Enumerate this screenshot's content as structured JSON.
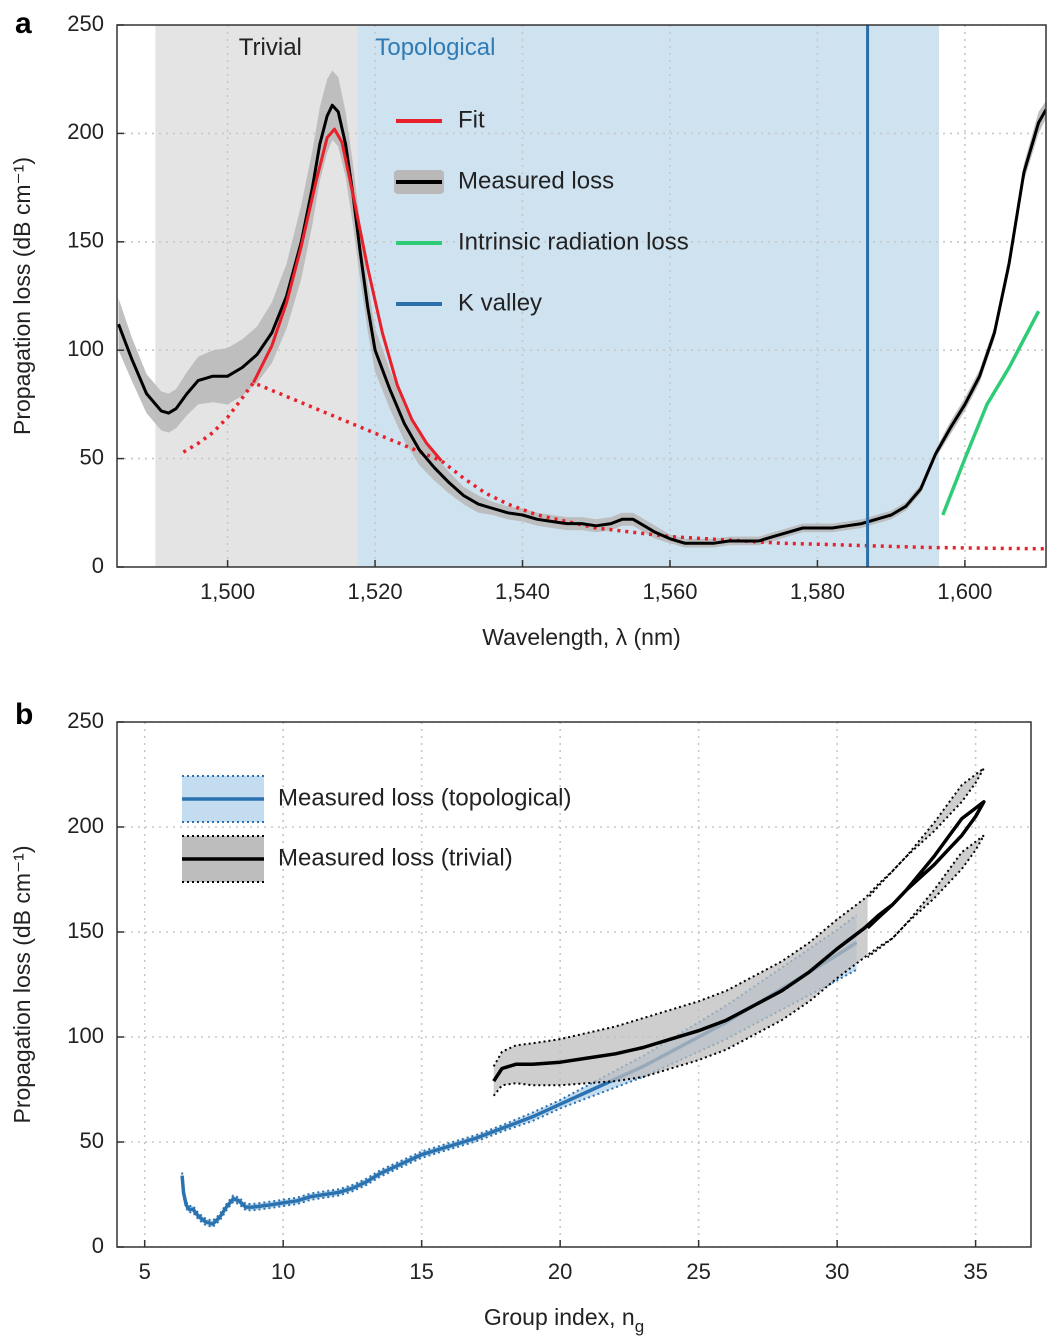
{
  "chart_data": [
    {
      "panel": "a",
      "type": "line",
      "xlabel": "Wavelength, λ (nm)",
      "ylabel": "Propagation loss (dB cm⁻¹)",
      "xlim": [
        1485,
        1611
      ],
      "ylim": [
        0,
        250
      ],
      "xticks": [
        1500,
        1520,
        1540,
        1560,
        1580,
        1600
      ],
      "xtick_labels": [
        "1,500",
        "1,520",
        "1,540",
        "1,560",
        "1,580",
        "1,600"
      ],
      "yticks": [
        0,
        50,
        100,
        150,
        200,
        250
      ],
      "ytick_labels": [
        "0",
        "50",
        "100",
        "150",
        "200",
        "250"
      ],
      "grid": true,
      "regions": [
        {
          "label": "Trivial",
          "x_range": [
            1490.2,
            1517.6
          ],
          "color": "#e4e4e4",
          "text_color": "#222222"
        },
        {
          "label": "Topological",
          "x_range": [
            1517.6,
            1596.5
          ],
          "color": "#cfe2f0",
          "text_color": "#2f7bb5"
        }
      ],
      "vline": {
        "x": 1586.8,
        "color": "#2a6fa8"
      },
      "legend": {
        "placement": "upper-center",
        "entries": [
          {
            "label": "Fit",
            "color": "#e8202a"
          },
          {
            "label": "Measured loss",
            "color": "#000000"
          },
          {
            "label": "Intrinsic radiation loss",
            "color": "#2fcc78"
          },
          {
            "label": "K valley",
            "color": "#2a6fa8"
          }
        ]
      },
      "series": [
        {
          "name": "Measured loss",
          "color": "#000000",
          "band_color": "#b9b9b9",
          "x": [
            1485.2,
            1487,
            1489,
            1491,
            1492,
            1493,
            1494.5,
            1496,
            1498,
            1500,
            1502,
            1504,
            1506,
            1508,
            1510,
            1511.5,
            1512.5,
            1513.5,
            1514.2,
            1515,
            1516,
            1517,
            1518,
            1519,
            1520,
            1522,
            1524,
            1526,
            1528,
            1530,
            1532,
            1534,
            1536,
            1538,
            1540,
            1542,
            1544,
            1546,
            1548,
            1550,
            1552,
            1553.5,
            1555,
            1556.5,
            1558,
            1560,
            1562,
            1564,
            1566,
            1568,
            1570,
            1572,
            1574,
            1576,
            1578,
            1580,
            1582,
            1584,
            1586,
            1588,
            1590,
            1592,
            1594,
            1596,
            1598,
            1600,
            1602,
            1604,
            1606,
            1608,
            1610,
            1611
          ],
          "y": [
            112,
            96,
            80,
            72,
            71,
            73,
            80,
            86,
            88,
            88,
            92,
            98,
            108,
            125,
            150,
            175,
            195,
            208,
            213,
            210,
            195,
            172,
            145,
            120,
            100,
            82,
            66,
            54,
            46,
            39,
            33,
            29,
            27,
            25,
            24,
            22,
            21,
            20,
            20,
            19,
            20,
            22,
            22,
            19,
            16,
            13,
            11,
            11,
            11,
            12,
            12,
            12,
            14,
            16,
            18,
            18,
            18,
            19,
            20,
            22,
            24,
            28,
            36,
            52,
            64,
            75,
            88,
            108,
            140,
            182,
            205,
            211
          ],
          "band_y": [
            124,
            106,
            89,
            81,
            80,
            82,
            90,
            97,
            100,
            101,
            105,
            111,
            122,
            140,
            167,
            192,
            212,
            225,
            229,
            226,
            210,
            186,
            158,
            131,
            110,
            91,
            74,
            61,
            52,
            44,
            37,
            33,
            30,
            28,
            27,
            25,
            24,
            23,
            23,
            22,
            23,
            25,
            25,
            22,
            19,
            15,
            13,
            13,
            13,
            14,
            14,
            14,
            16,
            18,
            20,
            20,
            20,
            21,
            22,
            24,
            26,
            30,
            38,
            54,
            67,
            78,
            91,
            111,
            144,
            186,
            210,
            215
          ]
        },
        {
          "name": "Fit",
          "color": "#e8202a",
          "solid_x": [
            1503.5,
            1506,
            1508,
            1510,
            1512,
            1513.5,
            1514.5,
            1515.5,
            1517,
            1519,
            1521,
            1523,
            1525,
            1527,
            1529
          ],
          "solid_y": [
            85,
            102,
            122,
            148,
            178,
            198,
            202,
            196,
            172,
            138,
            108,
            84,
            68,
            57,
            49
          ],
          "dotted_x": [
            1494,
            1496,
            1498,
            1500,
            1502,
            1503.5,
            1529,
            1532,
            1535,
            1538,
            1542,
            1546,
            1550,
            1555,
            1560,
            1565,
            1570,
            1575,
            1580,
            1585,
            1590,
            1595,
            1600,
            1605,
            1611
          ],
          "dotted_y": [
            53,
            57,
            62,
            69,
            78,
            85,
            49,
            41,
            34,
            29,
            24,
            21,
            18,
            16,
            14,
            13,
            12,
            11,
            10.5,
            10,
            9.5,
            9,
            8.8,
            8.6,
            8.4
          ]
        },
        {
          "name": "Intrinsic radiation loss",
          "color": "#2fcc78",
          "x": [
            1597,
            1600,
            1603,
            1606,
            1610
          ],
          "y": [
            24,
            50,
            75,
            92,
            118
          ]
        }
      ]
    },
    {
      "panel": "b",
      "type": "line",
      "xlabel": "Group index, n",
      "xlabel_sub": "g",
      "ylabel": "Propagation loss (dB cm⁻¹)",
      "xlim": [
        4,
        37
      ],
      "ylim": [
        0,
        250
      ],
      "xticks": [
        5,
        10,
        15,
        20,
        25,
        30,
        35
      ],
      "xtick_labels": [
        "5",
        "10",
        "15",
        "20",
        "25",
        "30",
        "35"
      ],
      "yticks": [
        0,
        50,
        100,
        150,
        200,
        250
      ],
      "ytick_labels": [
        "0",
        "50",
        "100",
        "150",
        "200",
        "250"
      ],
      "grid": true,
      "legend": {
        "placement": "top-left",
        "entries": [
          {
            "label": "Measured loss (topological)",
            "color": "#2a72b0",
            "band_color": "#c3dcef"
          },
          {
            "label": "Measured loss (trivial)",
            "color": "#000000",
            "band_color": "#bdbdbd"
          }
        ]
      },
      "series": [
        {
          "name": "Measured loss (topological)",
          "color": "#2a72b0",
          "band_color": "#c3dcef",
          "x": [
            6.35,
            6.4,
            6.5,
            6.6,
            6.75,
            6.85,
            7.0,
            7.2,
            7.45,
            7.7,
            7.95,
            8.2,
            8.4,
            8.65,
            8.9,
            9.5,
            10.0,
            10.5,
            11.0,
            11.5,
            12.0,
            12.5,
            13.0,
            13.5,
            14.0,
            15.0,
            16.0,
            17.0,
            18.0,
            19.0,
            20.0,
            21.0,
            22.0,
            23.0,
            24.0,
            25.0,
            26.0,
            27.0,
            28.0,
            29.0,
            30.0,
            30.7
          ],
          "y": [
            34,
            26,
            20,
            18,
            18,
            16,
            14,
            12,
            11,
            14,
            19,
            23,
            22,
            19,
            19,
            20,
            21,
            22,
            24,
            25,
            26,
            28,
            31,
            35,
            38,
            44,
            48,
            52,
            57,
            62,
            68,
            74,
            80,
            86,
            93,
            100,
            107,
            115,
            123,
            131,
            139,
            145
          ],
          "band_hw": [
            1.5,
            1.5,
            1.5,
            1.5,
            1.5,
            1.5,
            1.5,
            1.5,
            1.5,
            1.5,
            1.5,
            1.5,
            1.5,
            1.5,
            1.5,
            1.5,
            1.5,
            1.5,
            1.5,
            1.5,
            1.5,
            1.5,
            1.5,
            1.5,
            1.5,
            1.5,
            1.5,
            1.5,
            1.5,
            2,
            2,
            3,
            4,
            5,
            6,
            7,
            8,
            9,
            10,
            11,
            12,
            13
          ]
        },
        {
          "name": "Measured loss (trivial)",
          "color": "#000000",
          "band_color": "#bdbdbd",
          "x": [
            17.6,
            17.9,
            18.4,
            19.0,
            20.0,
            21.0,
            22.0,
            23.0,
            24.0,
            25.0,
            26.0,
            27.0,
            28.0,
            29.0,
            30.0,
            31.0,
            31.5,
            32.0,
            32.5,
            33.0,
            33.5,
            34.0,
            34.5,
            35.0,
            35.3,
            35.0,
            34.5,
            34.0,
            33.5,
            33.0,
            32.5,
            32.0,
            31.5,
            31.1
          ],
          "y": [
            79,
            85,
            87,
            87,
            88,
            90,
            92,
            95,
            99,
            103,
            108,
            115,
            122,
            131,
            142,
            152,
            158,
            163,
            170,
            178,
            186,
            195,
            204,
            209,
            212,
            205,
            196,
            189,
            182,
            176,
            170,
            163,
            157,
            152
          ],
          "band_hw": [
            7,
            8,
            9,
            10,
            11,
            12,
            13,
            14,
            14,
            14,
            14,
            14,
            14,
            14,
            14,
            14,
            15,
            16,
            16,
            16,
            16,
            16,
            16,
            16,
            16,
            16,
            16,
            16,
            16,
            16,
            16,
            16,
            15,
            14
          ]
        }
      ]
    }
  ]
}
